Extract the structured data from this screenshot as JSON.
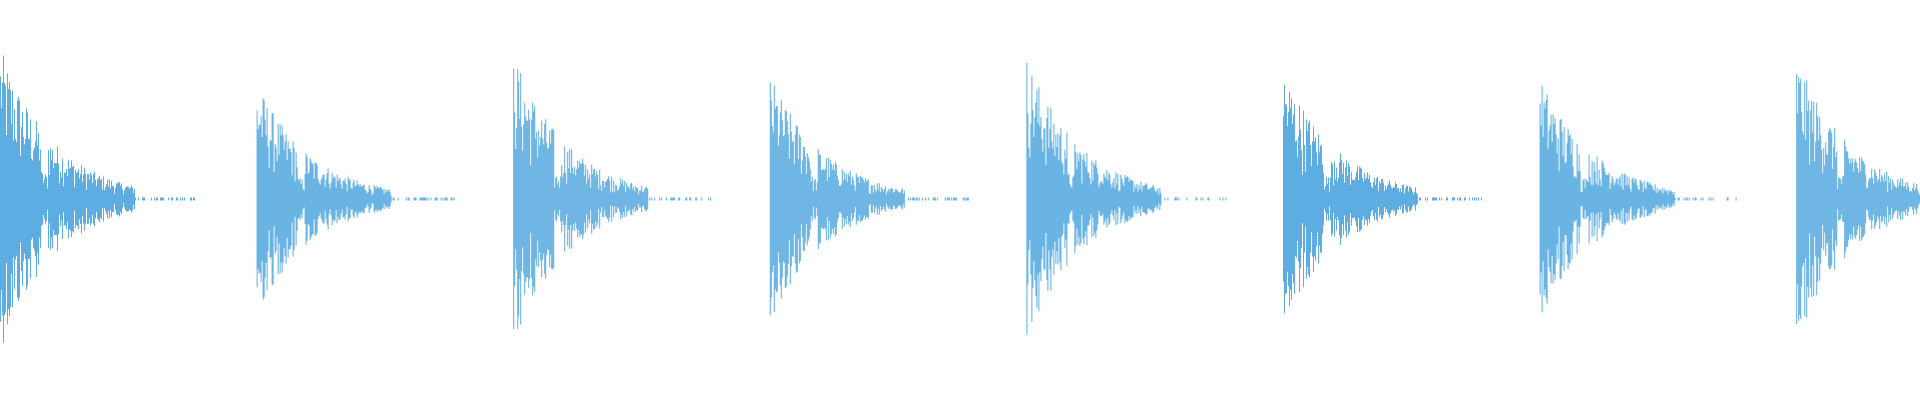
{
  "chart_data": {
    "type": "waveform",
    "title": "",
    "xlabel": "",
    "ylabel": "",
    "grid": false,
    "color": "#5DADE2",
    "background": "#ffffff",
    "burst_count": 8,
    "burst_peak_amplitudes": [
      0.98,
      0.75,
      0.94,
      0.8,
      0.92,
      0.85,
      0.79,
      0.92
    ],
    "ylim": [
      -1,
      1
    ]
  }
}
